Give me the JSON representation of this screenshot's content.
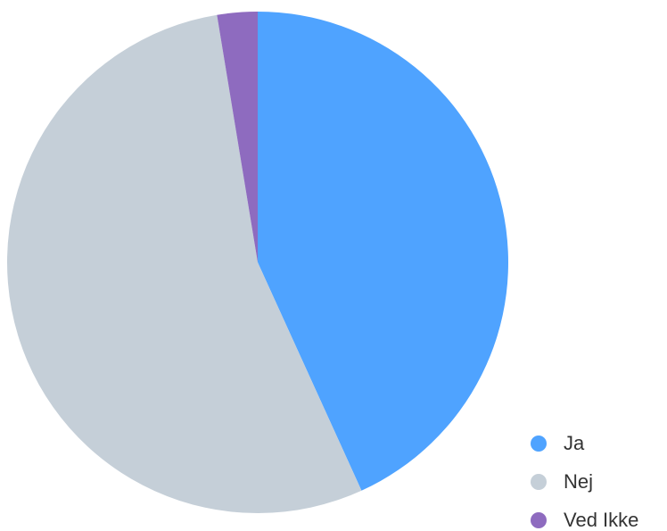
{
  "chart_data": {
    "type": "pie",
    "categories": [
      "Ja",
      "Nej",
      "Ved Ikke"
    ],
    "values": [
      43.2,
      54.2,
      2.6
    ],
    "colors": [
      "#4fa3ff",
      "#c5cfd8",
      "#8e6bbf"
    ],
    "legend": "bottom-right"
  }
}
